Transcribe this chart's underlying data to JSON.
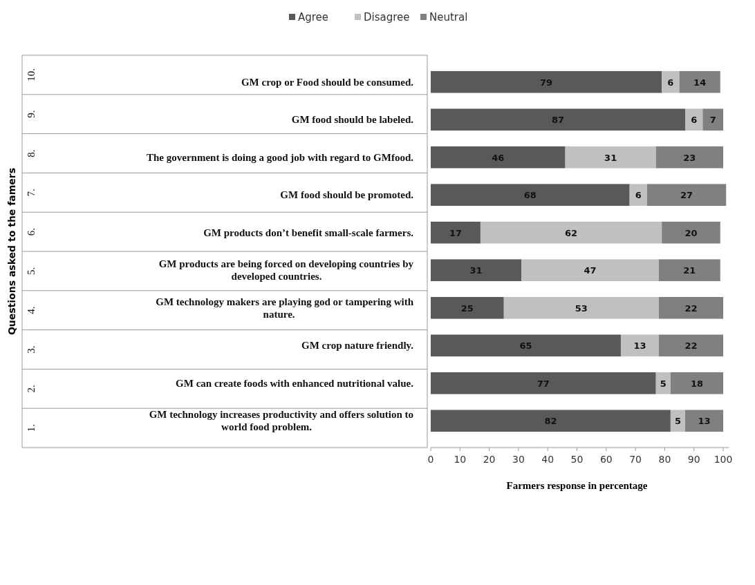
{
  "chart_data": {
    "type": "bar",
    "orientation": "horizontal",
    "stacked": true,
    "xlabel": "Farmers response in percentage",
    "categories": [
      "GM crop or Food should be consumed.",
      "GM food should be labeled.",
      "The government is doing a good job with regard to GMfood.",
      "GM food should be promoted.",
      "GM products don’t benefit small-scale farmers.",
      "GM products are being forced on developing countries by developed countries.",
      "GM technology makers are playing god or tampering with nature.",
      "GM crop nature friendly.",
      "GM can create foods with enhanced nutritional value.",
      "GM technology increases productivity and offers solution to world food problem."
    ],
    "annotations": [
      "10.",
      "9.",
      "8.",
      "7.",
      "6.",
      "5.",
      "4.",
      "3.",
      "2.",
      "1.",
      "Questions asked to the famers"
    ],
    "series": [
      {
        "name": "Agree",
        "color": "#595959",
        "values": [
          79,
          87,
          46,
          68,
          17,
          31,
          25,
          65,
          77,
          82
        ]
      },
      {
        "name": "Disagree",
        "color": "#c0c0c0",
        "values": [
          6,
          6,
          31,
          6,
          62,
          47,
          53,
          13,
          5,
          5
        ]
      },
      {
        "name": "Neutral",
        "color": "#808080",
        "values": [
          14,
          7,
          23,
          27,
          20,
          21,
          22,
          22,
          18,
          13
        ]
      }
    ],
    "xlim": [
      0,
      102
    ],
    "xticks": [
      0,
      10,
      20,
      30,
      40,
      50,
      60,
      70,
      80,
      90,
      100
    ],
    "data_labels": true,
    "legend": "top",
    "grid": false
  }
}
